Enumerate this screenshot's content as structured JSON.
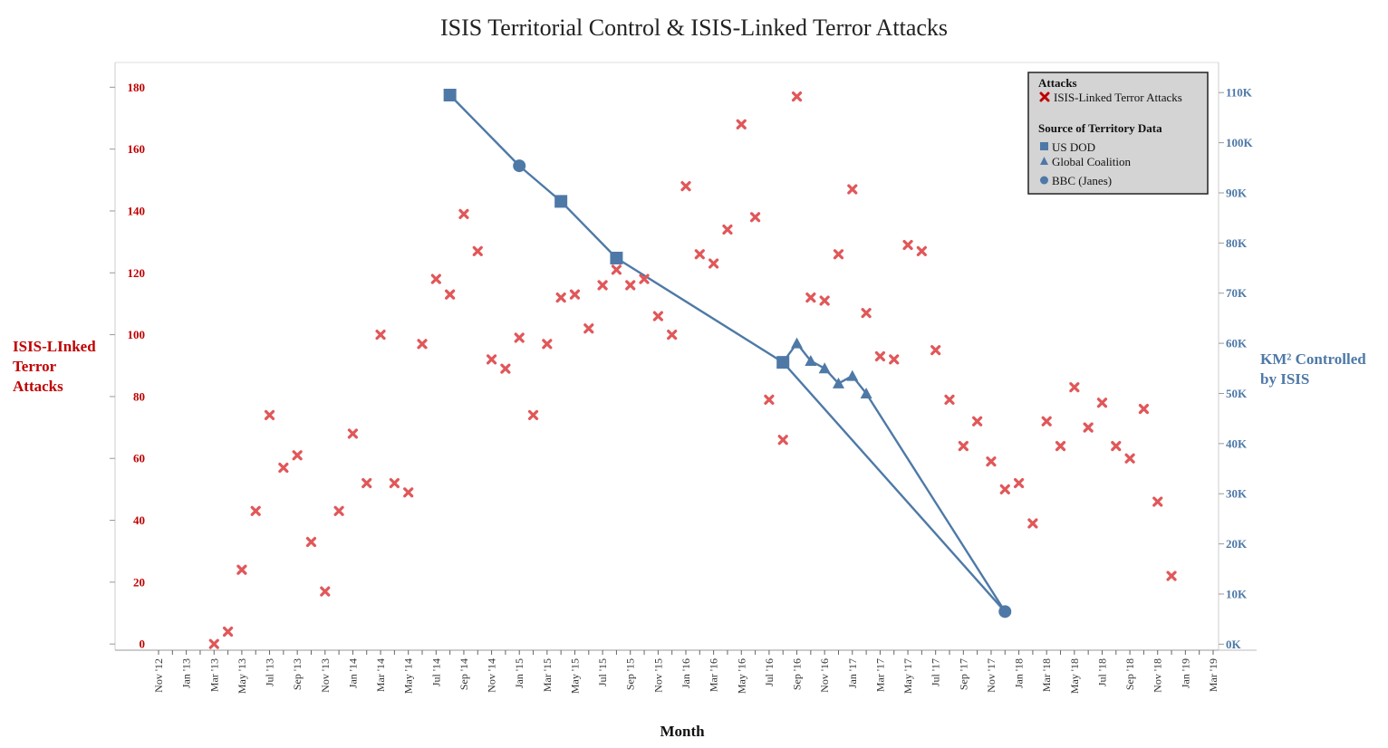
{
  "chart_data": {
    "type": "scatter",
    "title": "ISIS Territorial Control & ISIS-Linked Terror Attacks",
    "xlabel": "Month",
    "ylabel_left": [
      "ISIS-LInked",
      "Terror",
      "Attacks"
    ],
    "ylabel_right": [
      "KM² Controlled",
      "by ISIS"
    ],
    "x_tick_labels": [
      "Nov '12",
      "Jan '13",
      "Mar '13",
      "May '13",
      "Jul '13",
      "Sep '13",
      "Nov '13",
      "Jan '14",
      "Mar '14",
      "May '14",
      "Jul '14",
      "Sep '14",
      "Nov '14",
      "Jan '15",
      "Mar '15",
      "May '15",
      "Jul '15",
      "Sep '15",
      "Nov '15",
      "Jan '16",
      "Mar '16",
      "May '16",
      "Jul '16",
      "Sep '16",
      "Nov '16",
      "Jan '17",
      "Mar '17",
      "May '17",
      "Jul '17",
      "Sep '17",
      "Nov '17",
      "Jan '18",
      "Mar '18",
      "May '18",
      "Jul '18",
      "Sep '18",
      "Nov '18",
      "Jan '19",
      "Mar '19"
    ],
    "y_left": {
      "ticks": [
        0,
        20,
        40,
        60,
        80,
        100,
        120,
        140,
        160,
        180
      ],
      "ylim": [
        -2,
        188
      ]
    },
    "y_right": {
      "ticks": [
        0,
        10000,
        20000,
        30000,
        40000,
        50000,
        60000,
        70000,
        80000,
        90000,
        100000,
        110000
      ],
      "tick_labels": [
        "0K",
        "10K",
        "20K",
        "30K",
        "40K",
        "50K",
        "60K",
        "70K",
        "80K",
        "90K",
        "100K",
        "110K"
      ],
      "ylim": [
        -1200,
        116000
      ]
    },
    "grid": false,
    "legend_position": "top-right",
    "legend": {
      "attacks_title": "Attacks",
      "attacks_item": "ISIS-Linked Terror Attacks",
      "territory_title": "Source of Territory Data",
      "items": [
        "US DOD",
        "Global Coalition",
        "BBC (Janes)"
      ]
    },
    "colors": {
      "attacks": "#e15759",
      "territory": "#4e79a7",
      "left_axis": "#c00000"
    },
    "attacks": {
      "name": "ISIS-Linked Terror Attacks",
      "points": [
        [
          "Mar '13",
          0
        ],
        [
          "Apr '13",
          4
        ],
        [
          "May '13",
          24
        ],
        [
          "Jun '13",
          43
        ],
        [
          "Jul '13",
          74
        ],
        [
          "Aug '13",
          57
        ],
        [
          "Sep '13",
          61
        ],
        [
          "Oct '13",
          33
        ],
        [
          "Nov '13",
          17
        ],
        [
          "Dec '13",
          43
        ],
        [
          "Jan '14",
          68
        ],
        [
          "Feb '14",
          52
        ],
        [
          "Mar '14",
          100
        ],
        [
          "Apr '14",
          52
        ],
        [
          "May '14",
          49
        ],
        [
          "Jun '14",
          97
        ],
        [
          "Jul '14",
          118
        ],
        [
          "Aug '14",
          113
        ],
        [
          "Sep '14",
          139
        ],
        [
          "Oct '14",
          127
        ],
        [
          "Nov '14",
          92
        ],
        [
          "Dec '14",
          89
        ],
        [
          "Jan '15",
          99
        ],
        [
          "Feb '15",
          74
        ],
        [
          "Mar '15",
          97
        ],
        [
          "Apr '15",
          112
        ],
        [
          "May '15",
          113
        ],
        [
          "Jun '15",
          102
        ],
        [
          "Jul '15",
          116
        ],
        [
          "Aug '15",
          121
        ],
        [
          "Sep '15",
          116
        ],
        [
          "Oct '15",
          118
        ],
        [
          "Nov '15",
          106
        ],
        [
          "Dec '15",
          100
        ],
        [
          "Jan '16",
          148
        ],
        [
          "Feb '16",
          126
        ],
        [
          "Mar '16",
          123
        ],
        [
          "Apr '16",
          134
        ],
        [
          "May '16",
          168
        ],
        [
          "Jun '16",
          138
        ],
        [
          "Jul '16",
          79
        ],
        [
          "Aug '16",
          66
        ],
        [
          "Sep '16",
          177
        ],
        [
          "Oct '16",
          112
        ],
        [
          "Nov '16",
          111
        ],
        [
          "Dec '16",
          126
        ],
        [
          "Jan '17",
          147
        ],
        [
          "Feb '17",
          107
        ],
        [
          "Mar '17",
          93
        ],
        [
          "Apr '17",
          92
        ],
        [
          "May '17",
          129
        ],
        [
          "Jun '17",
          127
        ],
        [
          "Jul '17",
          95
        ],
        [
          "Aug '17",
          79
        ],
        [
          "Sep '17",
          64
        ],
        [
          "Oct '17",
          72
        ],
        [
          "Nov '17",
          59
        ],
        [
          "Dec '17",
          50
        ],
        [
          "Jan '18",
          52
        ],
        [
          "Feb '18",
          39
        ],
        [
          "Mar '18",
          72
        ],
        [
          "Apr '18",
          64
        ],
        [
          "May '18",
          83
        ],
        [
          "Jun '18",
          70
        ],
        [
          "Jul '18",
          78
        ],
        [
          "Aug '18",
          64
        ],
        [
          "Sep '18",
          60
        ],
        [
          "Oct '18",
          76
        ],
        [
          "Nov '18",
          46
        ],
        [
          "Dec '18",
          22
        ]
      ]
    },
    "territory": [
      {
        "name": "US DOD",
        "marker": "square",
        "points": [
          [
            "Aug '14",
            109500
          ],
          [
            "Apr '15",
            88300
          ],
          [
            "Aug '15",
            77000
          ],
          [
            "Aug '16",
            56200
          ]
        ]
      },
      {
        "name": "Global Coalition",
        "marker": "triangle",
        "points": [
          [
            "Sep '16",
            60000
          ],
          [
            "Oct '16",
            56500
          ],
          [
            "Nov '16",
            55000
          ],
          [
            "Dec '16",
            52000
          ],
          [
            "Jan '17",
            53500
          ],
          [
            "Feb '17",
            50000
          ]
        ]
      },
      {
        "name": "BBC (Janes)",
        "marker": "circle",
        "points": [
          [
            "Jan '15",
            95400
          ],
          [
            "Dec '17",
            6500
          ]
        ]
      }
    ]
  }
}
